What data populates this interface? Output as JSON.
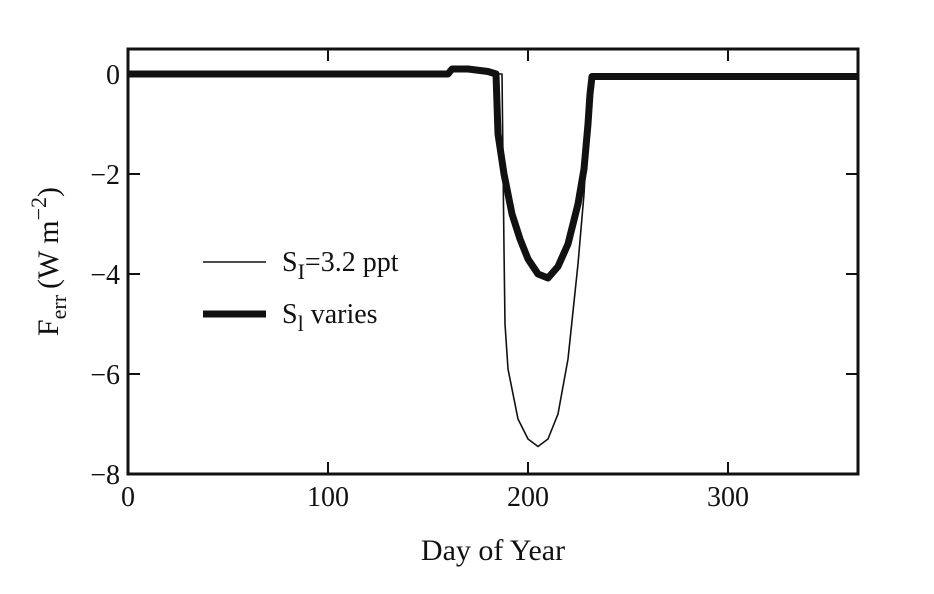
{
  "chart_data": {
    "type": "line",
    "xlabel": "Day of Year",
    "ylabel": {
      "main": "F",
      "main_sub": "err",
      "unit_open": "(W m",
      "unit_sup": "−2",
      "unit_close": ")"
    },
    "xlim": [
      0,
      365
    ],
    "ylim": [
      -8,
      0.5
    ],
    "x_ticks": [
      0,
      100,
      200,
      300
    ],
    "x_tick_labels": [
      "0",
      "100",
      "200",
      "300"
    ],
    "y_ticks": [
      0,
      -2,
      -4,
      -6,
      -8
    ],
    "y_tick_labels": [
      "0",
      "−2",
      "−4",
      "−6",
      "−8"
    ],
    "grid": false,
    "legend_position": "center-left",
    "legend": [
      {
        "label_main": "S",
        "label_sub": "I",
        "label_rest": "=3.2 ppt",
        "style": "thin"
      },
      {
        "label_main": "S",
        "label_sub": "l",
        "label_rest": " varies",
        "style": "thick"
      }
    ],
    "series": [
      {
        "style": "thin",
        "x": [
          0,
          160,
          162,
          170,
          180,
          186,
          187,
          188,
          188.5,
          190,
          195,
          200,
          205,
          210,
          215,
          220,
          225,
          228,
          230,
          231,
          232,
          365
        ],
        "y": [
          0,
          0,
          0.1,
          0.1,
          0.05,
          0,
          0,
          -3.5,
          -5.0,
          -5.9,
          -6.9,
          -7.3,
          -7.45,
          -7.3,
          -6.8,
          -5.7,
          -3.8,
          -2.4,
          -1.0,
          -0.3,
          -0.05,
          -0.05
        ]
      },
      {
        "style": "thick",
        "x": [
          0,
          160,
          162,
          170,
          180,
          184,
          185,
          188,
          192,
          196,
          200,
          205,
          210,
          215,
          220,
          225,
          228,
          230,
          231,
          232,
          365
        ],
        "y": [
          0,
          0,
          0.1,
          0.1,
          0.05,
          0,
          -1.2,
          -2.0,
          -2.8,
          -3.3,
          -3.7,
          -4.0,
          -4.08,
          -3.85,
          -3.4,
          -2.6,
          -1.9,
          -1.0,
          -0.4,
          -0.05,
          -0.05
        ]
      }
    ]
  }
}
